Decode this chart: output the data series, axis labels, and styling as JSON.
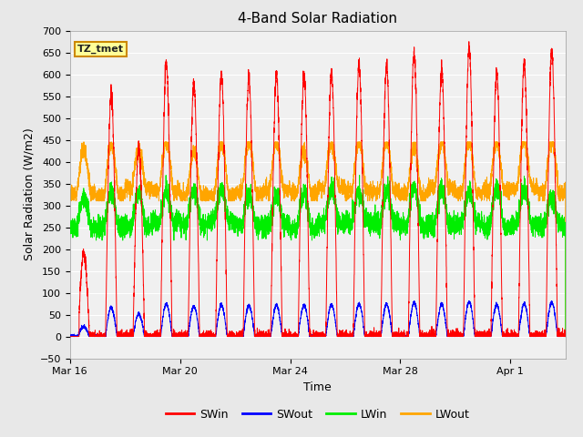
{
  "title": "4-Band Solar Radiation",
  "xlabel": "Time",
  "ylabel": "Solar Radiation (W/m2)",
  "ylim": [
    -50,
    700
  ],
  "yticks": [
    -50,
    0,
    50,
    100,
    150,
    200,
    250,
    300,
    350,
    400,
    450,
    500,
    550,
    600,
    650,
    700
  ],
  "xtick_positions": [
    0,
    4,
    8,
    12,
    16
  ],
  "xtick_labels": [
    "Mar 16",
    "Mar 20",
    "Mar 24",
    "Mar 28",
    "Apr 1"
  ],
  "annotation_text": "TZ_tmet",
  "annotation_bg": "#FFFF99",
  "annotation_border": "#CC8800",
  "colors": {
    "SWin": "#FF0000",
    "SWout": "#0000FF",
    "LWin": "#00EE00",
    "LWout": "#FFA500"
  },
  "background_color": "#E8E8E8",
  "plot_bg": "#F0F0F0",
  "n_days": 18,
  "samples_per_day": 288
}
